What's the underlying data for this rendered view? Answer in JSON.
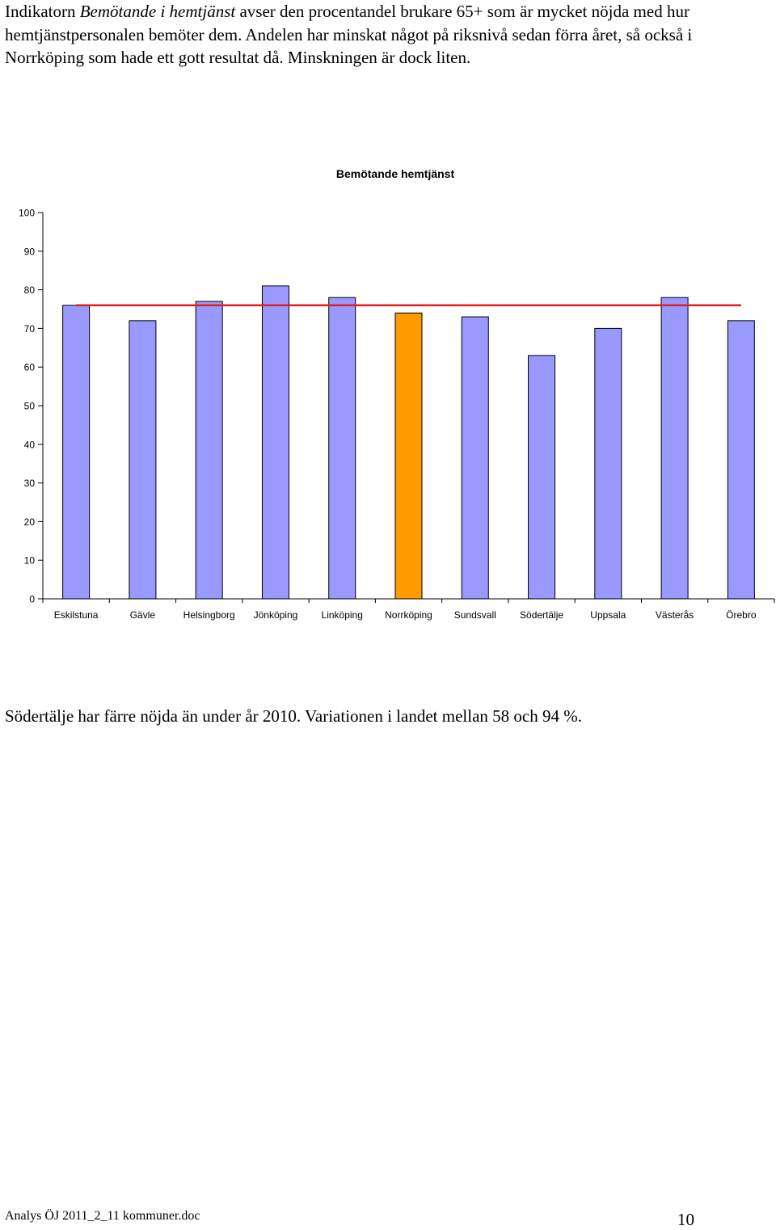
{
  "intro": {
    "part1": "Indikatorn ",
    "italic": "Bemötande i hemtjänst",
    "part2": " avser den procentandel brukare 65+ som är mycket nöjda med hur hemtjänstpersonalen bemöter dem. Andelen har minskat något på riksnivå sedan förra året, så också i Norrköping som hade ett gott resultat då. Minskningen är dock liten."
  },
  "chart_data": {
    "type": "bar",
    "title": "Bemötande hemtjänst",
    "categories": [
      "Eskilstuna",
      "Gävle",
      "Helsingborg",
      "Jönköping",
      "Linköping",
      "Norrköping",
      "Sundsvall",
      "Södertälje",
      "Uppsala",
      "Västerås",
      "Örebro"
    ],
    "values": [
      76,
      72,
      77,
      81,
      78,
      74,
      73,
      63,
      70,
      78,
      72
    ],
    "highlight_category": "Norrköping",
    "reference_line": 76,
    "ylim": [
      0,
      100
    ],
    "yticks": [
      0,
      10,
      20,
      30,
      40,
      50,
      60,
      70,
      80,
      90,
      100
    ],
    "xlabel": "",
    "ylabel": "",
    "grid": false,
    "colors": {
      "bar": "#9999ff",
      "highlight": "#ff9900",
      "reference_line": "#e0201e",
      "outline": "#000000"
    }
  },
  "caption": "Södertälje har färre nöjda än under år 2010. Variationen i landet mellan 58 och 94 %.",
  "footer": {
    "document_name": "Analys ÖJ 2011_2_11 kommuner.doc",
    "page_number": "10"
  }
}
